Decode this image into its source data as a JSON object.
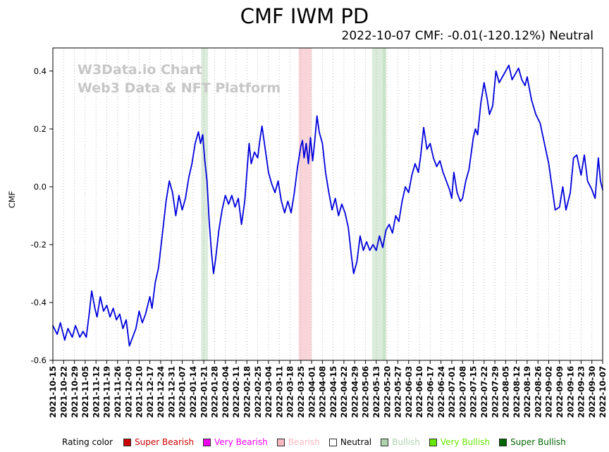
{
  "title": "CMF IWM PD",
  "subtitle": "2022-10-07 CMF: -0.01(-120.12%) Neutral",
  "watermark": {
    "line1": "W3Data.io Chart",
    "line2": "Web3 Data & NFT Platform"
  },
  "chart_data": {
    "type": "line",
    "title": "CMF IWM PD",
    "ylabel": "CMF",
    "ylim": [
      -0.6,
      0.48
    ],
    "yticks": [
      -0.6,
      -0.4,
      -0.2,
      0.0,
      0.2,
      0.4
    ],
    "grid": "vertical-dotted",
    "line_color": "#0000dd",
    "last_value": -0.01,
    "last_change_pct": -120.12,
    "last_rating": "Neutral",
    "x_tick_labels": [
      "2021-10-15",
      "2021-10-22",
      "2021-10-29",
      "2021-11-05",
      "2021-11-12",
      "2021-11-19",
      "2021-11-26",
      "2021-12-03",
      "2021-12-10",
      "2021-12-17",
      "2021-12-24",
      "2021-12-31",
      "2022-01-07",
      "2022-01-14",
      "2022-01-21",
      "2022-01-28",
      "2022-02-04",
      "2022-02-11",
      "2022-02-18",
      "2022-02-25",
      "2022-03-04",
      "2022-03-11",
      "2022-03-18",
      "2022-03-25",
      "2022-04-01",
      "2022-04-08",
      "2022-04-15",
      "2022-04-22",
      "2022-04-29",
      "2022-05-06",
      "2022-05-13",
      "2022-05-20",
      "2022-05-27",
      "2022-06-03",
      "2022-06-10",
      "2022-06-17",
      "2022-06-24",
      "2022-07-01",
      "2022-07-08",
      "2022-07-15",
      "2022-07-22",
      "2022-07-29",
      "2022-08-05",
      "2022-08-12",
      "2022-08-19",
      "2022-08-26",
      "2022-09-02",
      "2022-09-09",
      "2022-09-16",
      "2022-09-23",
      "2022-09-30",
      "2022-10-07"
    ],
    "bands": [
      {
        "rating": "Bullish",
        "week_start": 13.75,
        "week_end": 14.4,
        "color": "#dcecdc"
      },
      {
        "rating": "Bearish",
        "week_start": 22.8,
        "week_end": 24.0,
        "color": "#f9d4d8"
      },
      {
        "rating": "Bullish",
        "week_start": 29.6,
        "week_end": 30.6,
        "color": "#dcecdc"
      },
      {
        "rating": "Bullish",
        "week_start": 30.6,
        "week_end": 30.9,
        "color": "#c9e3c9"
      }
    ],
    "series": [
      {
        "name": "CMF",
        "points": [
          [
            0,
            -0.48
          ],
          [
            0.4,
            -0.51
          ],
          [
            0.7,
            -0.47
          ],
          [
            1.1,
            -0.53
          ],
          [
            1.4,
            -0.49
          ],
          [
            1.8,
            -0.52
          ],
          [
            2.1,
            -0.48
          ],
          [
            2.5,
            -0.52
          ],
          [
            2.8,
            -0.5
          ],
          [
            3.1,
            -0.52
          ],
          [
            3.4,
            -0.43
          ],
          [
            3.6,
            -0.36
          ],
          [
            3.9,
            -0.42
          ],
          [
            4.1,
            -0.45
          ],
          [
            4.4,
            -0.38
          ],
          [
            4.7,
            -0.43
          ],
          [
            5.0,
            -0.41
          ],
          [
            5.3,
            -0.45
          ],
          [
            5.6,
            -0.42
          ],
          [
            5.9,
            -0.46
          ],
          [
            6.2,
            -0.44
          ],
          [
            6.5,
            -0.49
          ],
          [
            6.8,
            -0.46
          ],
          [
            7.1,
            -0.55
          ],
          [
            7.4,
            -0.52
          ],
          [
            7.7,
            -0.49
          ],
          [
            8.0,
            -0.43
          ],
          [
            8.3,
            -0.47
          ],
          [
            8.6,
            -0.44
          ],
          [
            9.0,
            -0.38
          ],
          [
            9.2,
            -0.42
          ],
          [
            9.5,
            -0.33
          ],
          [
            9.8,
            -0.28
          ],
          [
            10.2,
            -0.15
          ],
          [
            10.5,
            -0.05
          ],
          [
            10.8,
            0.02
          ],
          [
            11.1,
            -0.02
          ],
          [
            11.4,
            -0.1
          ],
          [
            11.7,
            -0.03
          ],
          [
            12.0,
            -0.08
          ],
          [
            12.3,
            -0.04
          ],
          [
            12.6,
            0.03
          ],
          [
            12.9,
            0.08
          ],
          [
            13.2,
            0.15
          ],
          [
            13.5,
            0.19
          ],
          [
            13.7,
            0.15
          ],
          [
            13.9,
            0.18
          ],
          [
            14.1,
            0.09
          ],
          [
            14.3,
            0.02
          ],
          [
            14.5,
            -0.12
          ],
          [
            14.7,
            -0.22
          ],
          [
            14.9,
            -0.3
          ],
          [
            15.1,
            -0.25
          ],
          [
            15.4,
            -0.15
          ],
          [
            15.7,
            -0.08
          ],
          [
            16.0,
            -0.03
          ],
          [
            16.3,
            -0.06
          ],
          [
            16.6,
            -0.03
          ],
          [
            16.9,
            -0.07
          ],
          [
            17.2,
            -0.04
          ],
          [
            17.5,
            -0.13
          ],
          [
            17.8,
            -0.05
          ],
          [
            18.0,
            0.05
          ],
          [
            18.2,
            0.15
          ],
          [
            18.4,
            0.08
          ],
          [
            18.7,
            0.12
          ],
          [
            19.0,
            0.1
          ],
          [
            19.2,
            0.16
          ],
          [
            19.4,
            0.21
          ],
          [
            19.7,
            0.13
          ],
          [
            20.0,
            0.05
          ],
          [
            20.3,
            0.01
          ],
          [
            20.6,
            -0.02
          ],
          [
            20.9,
            0.02
          ],
          [
            21.2,
            -0.05
          ],
          [
            21.5,
            -0.09
          ],
          [
            21.8,
            -0.05
          ],
          [
            22.1,
            -0.09
          ],
          [
            22.4,
            -0.02
          ],
          [
            22.7,
            0.07
          ],
          [
            23.0,
            0.14
          ],
          [
            23.15,
            0.16
          ],
          [
            23.3,
            0.1
          ],
          [
            23.5,
            0.15
          ],
          [
            23.7,
            0.08
          ],
          [
            23.9,
            0.17
          ],
          [
            24.1,
            0.09
          ],
          [
            24.3,
            0.16
          ],
          [
            24.5,
            0.245
          ],
          [
            24.7,
            0.19
          ],
          [
            25.0,
            0.15
          ],
          [
            25.3,
            0.05
          ],
          [
            25.6,
            -0.02
          ],
          [
            25.9,
            -0.08
          ],
          [
            26.2,
            -0.04
          ],
          [
            26.5,
            -0.1
          ],
          [
            26.8,
            -0.06
          ],
          [
            27.1,
            -0.09
          ],
          [
            27.4,
            -0.14
          ],
          [
            27.7,
            -0.24
          ],
          [
            27.9,
            -0.3
          ],
          [
            28.2,
            -0.26
          ],
          [
            28.5,
            -0.17
          ],
          [
            28.8,
            -0.22
          ],
          [
            29.1,
            -0.19
          ],
          [
            29.4,
            -0.22
          ],
          [
            29.7,
            -0.2
          ],
          [
            30.0,
            -0.22
          ],
          [
            30.3,
            -0.17
          ],
          [
            30.6,
            -0.21
          ],
          [
            30.9,
            -0.15
          ],
          [
            31.2,
            -0.13
          ],
          [
            31.5,
            -0.16
          ],
          [
            31.8,
            -0.1
          ],
          [
            32.1,
            -0.12
          ],
          [
            32.4,
            -0.05
          ],
          [
            32.7,
            0.0
          ],
          [
            33.0,
            -0.02
          ],
          [
            33.3,
            0.04
          ],
          [
            33.6,
            0.08
          ],
          [
            33.9,
            0.05
          ],
          [
            34.1,
            0.1
          ],
          [
            34.4,
            0.205
          ],
          [
            34.7,
            0.13
          ],
          [
            35.0,
            0.15
          ],
          [
            35.3,
            0.1
          ],
          [
            35.6,
            0.07
          ],
          [
            35.9,
            0.09
          ],
          [
            36.2,
            0.05
          ],
          [
            36.5,
            0.02
          ],
          [
            36.8,
            -0.01
          ],
          [
            37.0,
            -0.04
          ],
          [
            37.2,
            0.05
          ],
          [
            37.5,
            -0.02
          ],
          [
            37.8,
            -0.05
          ],
          [
            38.0,
            -0.04
          ],
          [
            38.3,
            0.02
          ],
          [
            38.6,
            0.06
          ],
          [
            39.0,
            0.17
          ],
          [
            39.2,
            0.2
          ],
          [
            39.4,
            0.18
          ],
          [
            39.7,
            0.29
          ],
          [
            40.0,
            0.36
          ],
          [
            40.3,
            0.3
          ],
          [
            40.5,
            0.25
          ],
          [
            40.8,
            0.28
          ],
          [
            41.1,
            0.4
          ],
          [
            41.4,
            0.36
          ],
          [
            41.7,
            0.38
          ],
          [
            42.0,
            0.4
          ],
          [
            42.3,
            0.42
          ],
          [
            42.6,
            0.37
          ],
          [
            42.9,
            0.39
          ],
          [
            43.2,
            0.41
          ],
          [
            43.5,
            0.37
          ],
          [
            43.8,
            0.35
          ],
          [
            44.0,
            0.38
          ],
          [
            44.4,
            0.3
          ],
          [
            44.8,
            0.25
          ],
          [
            45.2,
            0.22
          ],
          [
            45.6,
            0.15
          ],
          [
            46.0,
            0.08
          ],
          [
            46.3,
            0.0
          ],
          [
            46.6,
            -0.08
          ],
          [
            47.0,
            -0.07
          ],
          [
            47.3,
            0.0
          ],
          [
            47.6,
            -0.08
          ],
          [
            48.0,
            -0.02
          ],
          [
            48.3,
            0.1
          ],
          [
            48.6,
            0.11
          ],
          [
            49.0,
            0.04
          ],
          [
            49.3,
            0.11
          ],
          [
            49.6,
            0.02
          ],
          [
            50.0,
            -0.01
          ],
          [
            50.3,
            -0.04
          ],
          [
            50.6,
            0.1
          ],
          [
            50.8,
            0.02
          ],
          [
            51.0,
            -0.01
          ]
        ]
      }
    ]
  },
  "legend": {
    "title": "Rating color",
    "items": [
      {
        "label": "Super Bearish",
        "color": "#cc0000"
      },
      {
        "label": "Very Bearish",
        "color": "#ee00ee"
      },
      {
        "label": "Bearish",
        "color": "#f8b8c0"
      },
      {
        "label": "Neutral",
        "color": "#ffffff",
        "text_color": "#000000"
      },
      {
        "label": "Bullish",
        "color": "#aed4ae"
      },
      {
        "label": "Very Bullish",
        "color": "#66e600"
      },
      {
        "label": "Super Bullish",
        "color": "#006400"
      }
    ]
  }
}
